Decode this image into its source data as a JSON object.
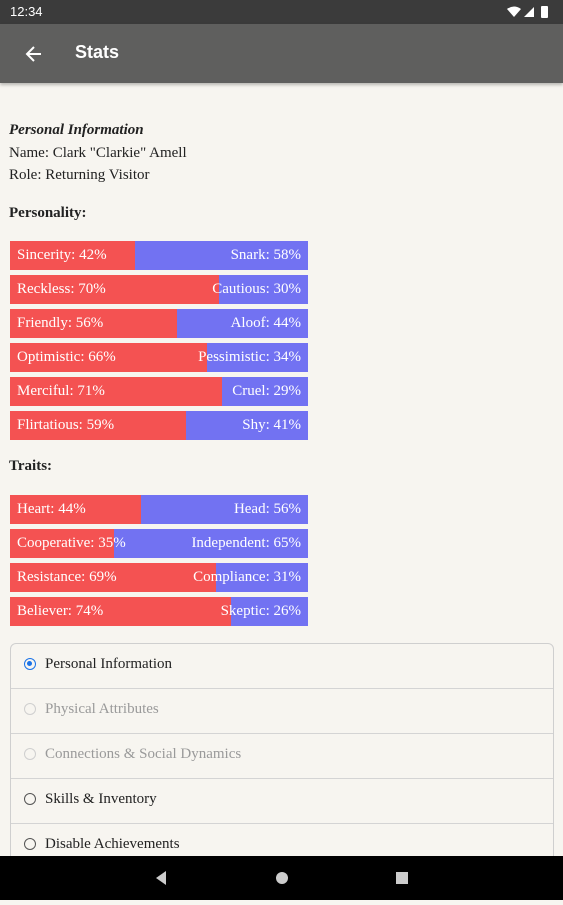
{
  "status_bar": {
    "time": "12:34"
  },
  "app_bar": {
    "title": "Stats"
  },
  "profile": {
    "heading": "Personal Information",
    "name": "Name: Clark \"Clarkie\" Amell",
    "role": "Role: Returning Visitor"
  },
  "personality": {
    "heading": "Personality:",
    "bars": [
      {
        "left": {
          "label": "Sincerity: 42%",
          "value": 42
        },
        "right": {
          "label": "Snark: 58%",
          "value": 58
        }
      },
      {
        "left": {
          "label": "Reckless: 70%",
          "value": 70
        },
        "right": {
          "label": "Cautious: 30%",
          "value": 30
        }
      },
      {
        "left": {
          "label": "Friendly: 56%",
          "value": 56
        },
        "right": {
          "label": "Aloof: 44%",
          "value": 44
        }
      },
      {
        "left": {
          "label": "Optimistic: 66%",
          "value": 66
        },
        "right": {
          "label": "Pessimistic: 34%",
          "value": 34
        }
      },
      {
        "left": {
          "label": "Merciful: 71%",
          "value": 71
        },
        "right": {
          "label": "Cruel: 29%",
          "value": 29
        }
      },
      {
        "left": {
          "label": "Flirtatious: 59%",
          "value": 59
        },
        "right": {
          "label": "Shy: 41%",
          "value": 41
        }
      }
    ]
  },
  "traits": {
    "heading": "Traits:",
    "bars": [
      {
        "left": {
          "label": "Heart: 44%",
          "value": 44
        },
        "right": {
          "label": "Head: 56%",
          "value": 56
        }
      },
      {
        "left": {
          "label": "Cooperative: 35%",
          "value": 35
        },
        "right": {
          "label": "Independent: 65%",
          "value": 65
        }
      },
      {
        "left": {
          "label": "Resistance: 69%",
          "value": 69
        },
        "right": {
          "label": "Compliance: 31%",
          "value": 31
        }
      },
      {
        "left": {
          "label": "Believer: 74%",
          "value": 74
        },
        "right": {
          "label": "Skeptic: 26%",
          "value": 26
        }
      }
    ]
  },
  "options": [
    {
      "label": "Personal Information",
      "checked": true,
      "disabled": false
    },
    {
      "label": "Physical Attributes",
      "checked": false,
      "disabled": true
    },
    {
      "label": "Connections & Social Dynamics",
      "checked": false,
      "disabled": true
    },
    {
      "label": "Skills & Inventory",
      "checked": false,
      "disabled": false
    },
    {
      "label": "Disable Achievements",
      "checked": false,
      "disabled": false
    }
  ]
}
